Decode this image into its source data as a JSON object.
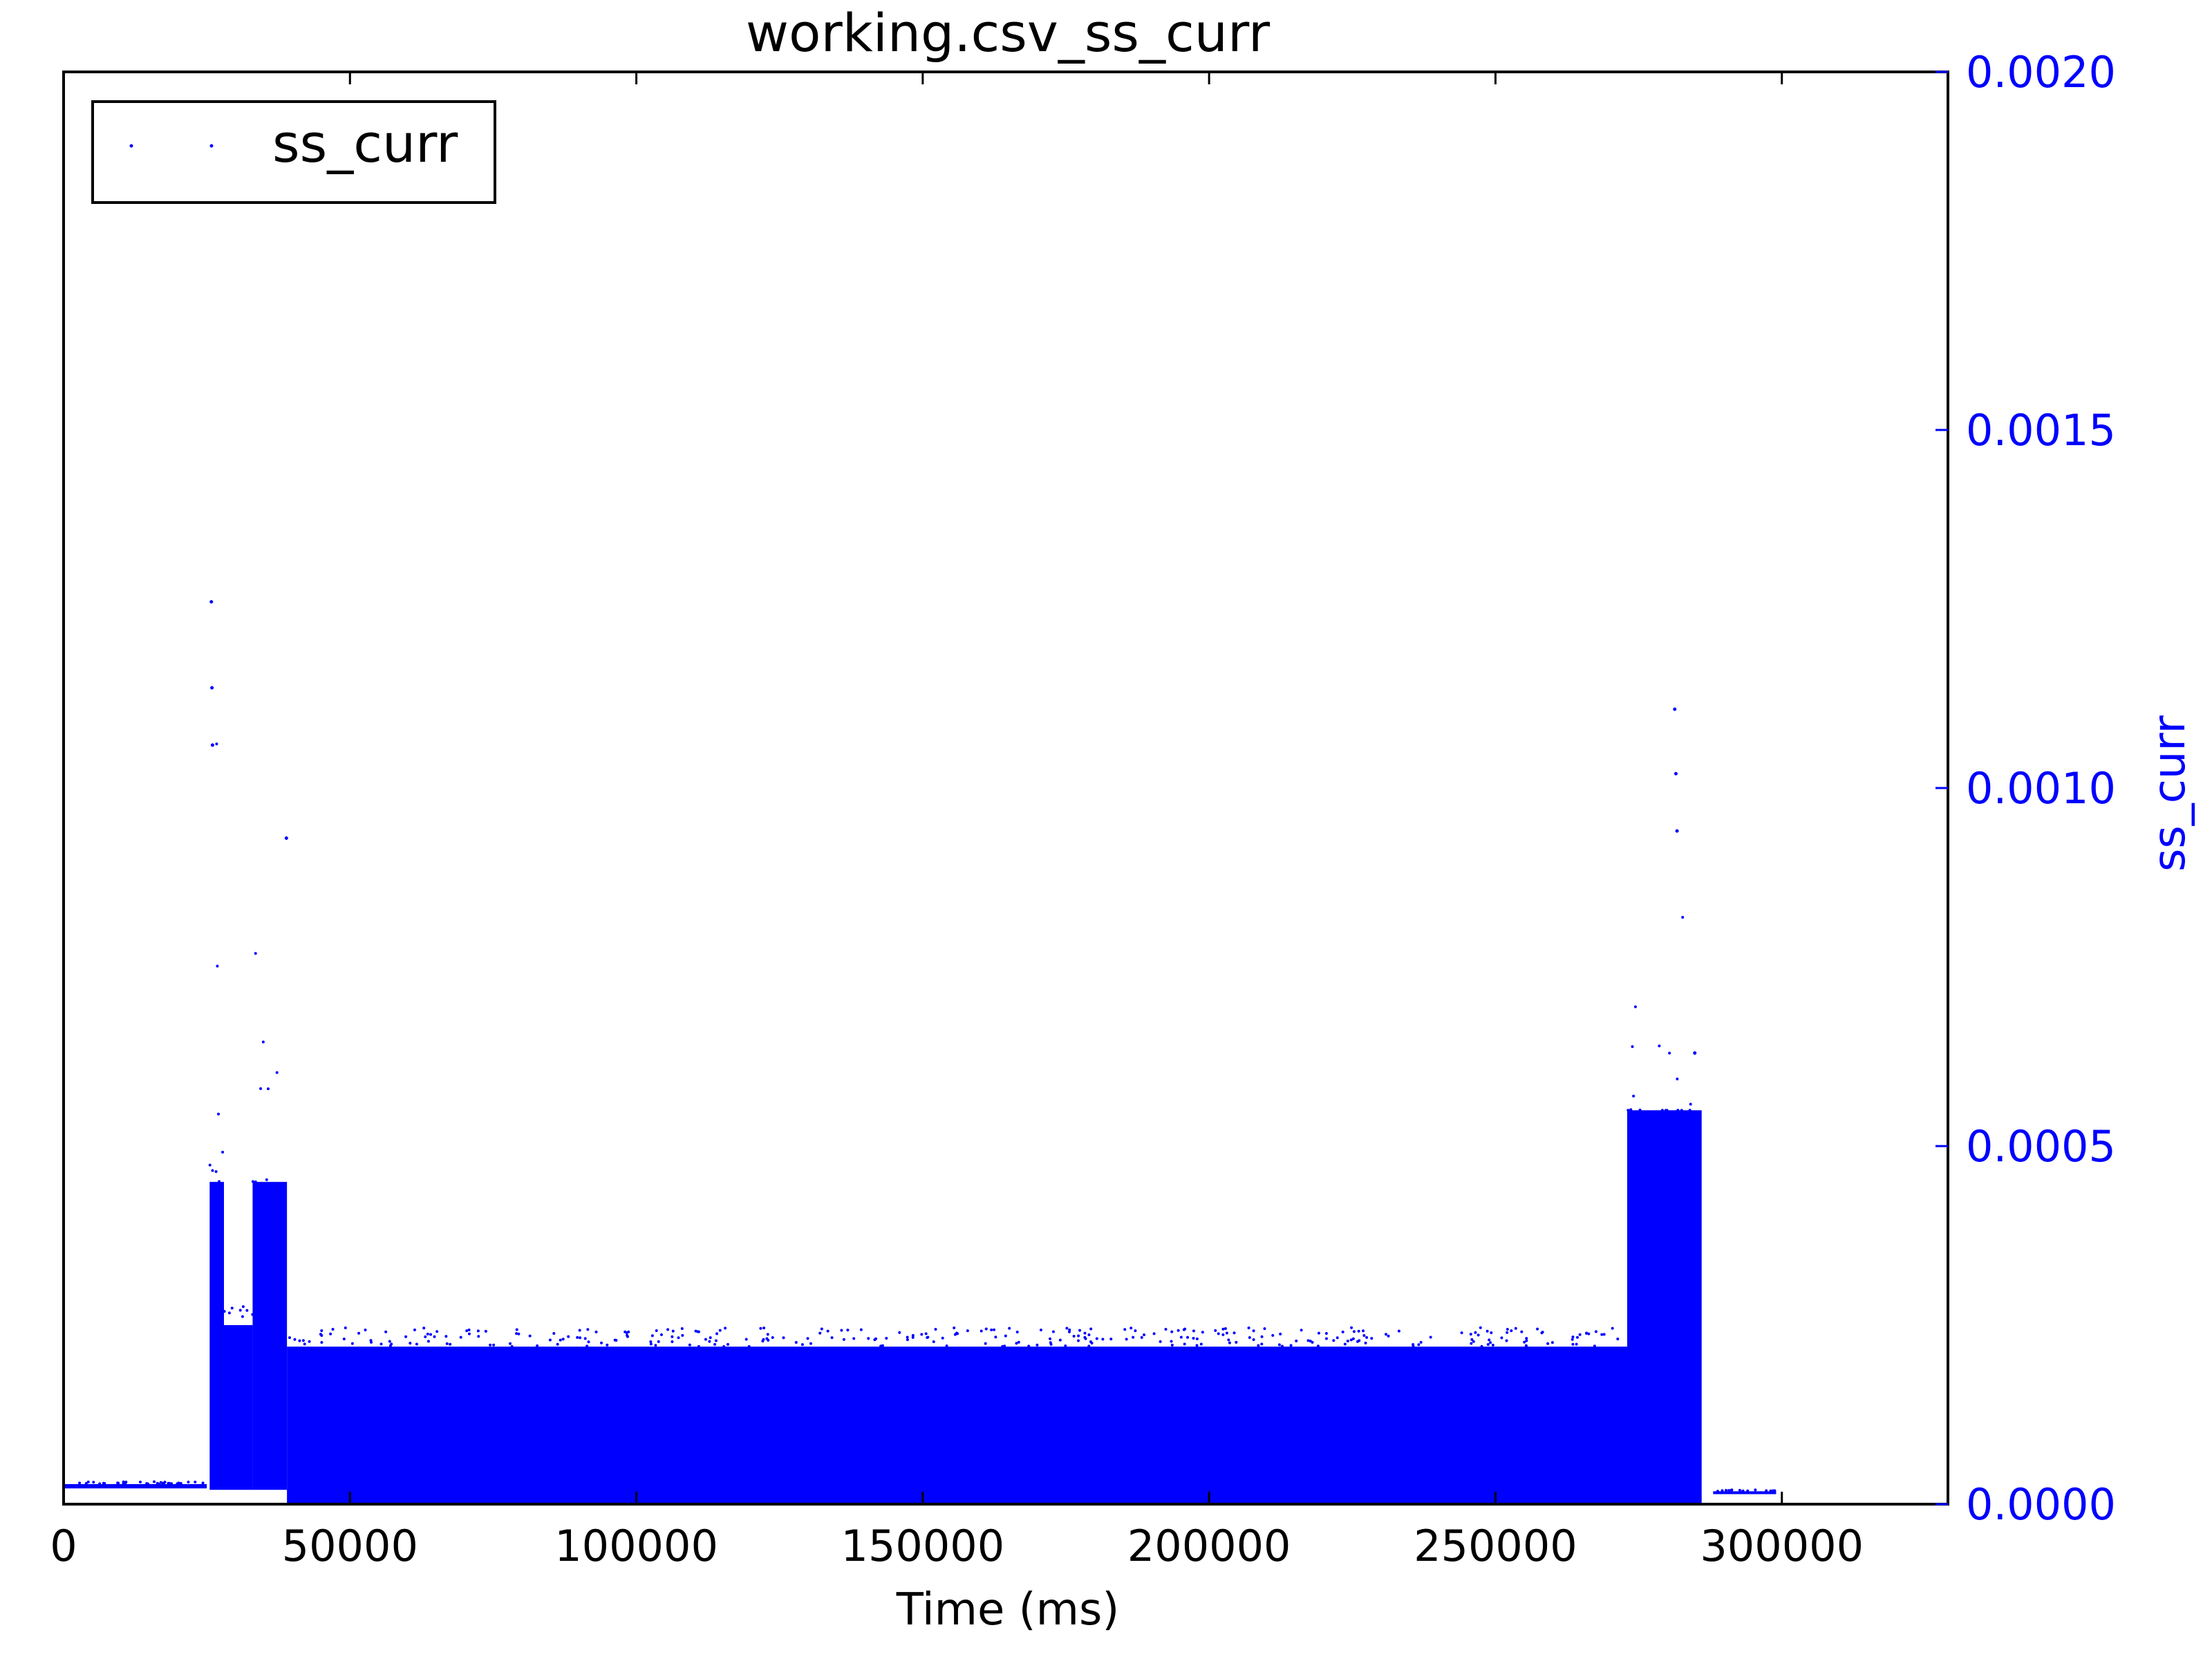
{
  "chart_data": {
    "type": "scatter",
    "title": "working.csv_ss_curr",
    "xlabel": "Time (ms)",
    "ylabel": "ss_curr",
    "xlim": [
      0,
      329000
    ],
    "ylim": [
      0,
      0.002
    ],
    "x_ticks": [
      "0",
      "50000",
      "100000",
      "150000",
      "200000",
      "250000",
      "300000"
    ],
    "x_tick_values": [
      0,
      50000,
      100000,
      150000,
      200000,
      250000,
      300000
    ],
    "y_ticks": [
      "0.0000",
      "0.0005",
      "0.0010",
      "0.0015",
      "0.0020"
    ],
    "y_tick_values": [
      0,
      0.0005,
      0.001,
      0.0015,
      0.002
    ],
    "y_axis_side": "right",
    "y_axis_color": "#0000ff",
    "legend": {
      "entries": [
        "ss_curr"
      ],
      "location": "top-left"
    },
    "grid": false,
    "series": [
      {
        "name": "ss_curr",
        "color": "#0000ff",
        "marker": "point",
        "segments": [
          {
            "x_start": 0,
            "x_end": 25000,
            "y_low": 2.2e-05,
            "y_high": 2.8e-05,
            "note": "flat baseline"
          },
          {
            "x_start": 25500,
            "x_end": 28000,
            "y_low": 2e-05,
            "y_high": 0.00045,
            "spike_max": 0.00126
          },
          {
            "x_start": 28000,
            "x_end": 33000,
            "y_low": 2e-05,
            "y_high": 0.00025
          },
          {
            "x_start": 33000,
            "x_end": 39000,
            "y_low": 2e-05,
            "y_high": 0.00045,
            "spike_max": 0.00093
          },
          {
            "x_start": 39000,
            "x_end": 273000,
            "y_low": 0.0,
            "y_high": 0.00022,
            "note": "dense band"
          },
          {
            "x_start": 273000,
            "x_end": 286000,
            "y_low": 0.0,
            "y_high": 0.00055,
            "spike_max": 0.00111
          },
          {
            "x_start": 288000,
            "x_end": 299000,
            "y_low": 1.4e-05,
            "y_high": 1.8e-05,
            "note": "flat tail"
          }
        ],
        "outliers": [
          {
            "x": 25800,
            "y": 0.00126
          },
          {
            "x": 25900,
            "y": 0.00114
          },
          {
            "x": 26000,
            "y": 0.00106
          },
          {
            "x": 38900,
            "y": 0.00093
          },
          {
            "x": 281300,
            "y": 0.00111
          },
          {
            "x": 281500,
            "y": 0.00102
          },
          {
            "x": 281700,
            "y": 0.00094
          },
          {
            "x": 284800,
            "y": 0.00063
          }
        ]
      }
    ]
  }
}
